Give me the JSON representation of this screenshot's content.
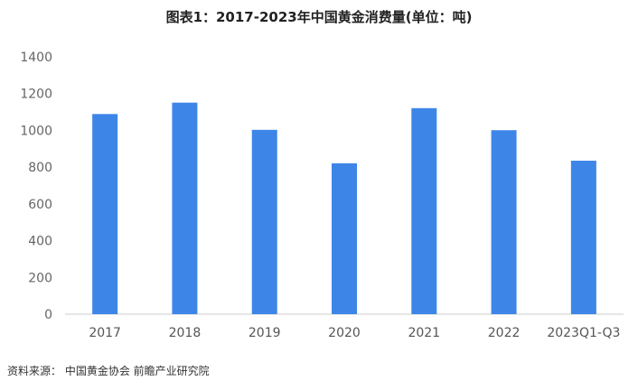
{
  "title": "图表1：2017-2023年中国黄金消费量(单位：吨)",
  "source": "资料来源： 中国黄金协会 前瞻产业研究院",
  "colors": {
    "bar": "#3d86e8",
    "axis": "#cccccc"
  },
  "chart_data": {
    "type": "bar",
    "title": "图表1：2017-2023年中国黄金消费量(单位：吨)",
    "categories": [
      "2017",
      "2018",
      "2019",
      "2020",
      "2021",
      "2022",
      "2023Q1-Q3"
    ],
    "values": [
      1089,
      1151,
      1003,
      821,
      1121,
      1001,
      835
    ],
    "ylim": [
      0,
      1400
    ],
    "yticks": [
      0,
      200,
      400,
      600,
      800,
      1000,
      1200,
      1400
    ],
    "grid": false,
    "xlabel": "",
    "ylabel": ""
  }
}
